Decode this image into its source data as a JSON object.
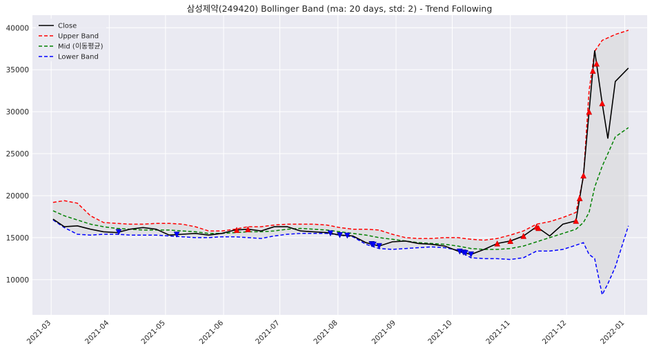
{
  "chart_data": {
    "type": "line",
    "title": "삼성제약(249420) Bollinger Band (ma: 20 days, std: 2) - Trend Following",
    "xlabel": "",
    "ylabel": "",
    "x_range": [
      "2021-02-19",
      "2022-01-13"
    ],
    "ylim": [
      5800,
      41500
    ],
    "grid": true,
    "legend_position": "upper-left",
    "x_ticks": [
      "2021-03",
      "2021-04",
      "2021-05",
      "2021-06",
      "2021-07",
      "2021-08",
      "2021-09",
      "2021-10",
      "2021-11",
      "2021-12",
      "2022-01"
    ],
    "y_ticks": [
      10000,
      15000,
      20000,
      25000,
      30000,
      35000,
      40000
    ],
    "x": [
      "2021-03-02",
      "2021-03-08",
      "2021-03-15",
      "2021-03-22",
      "2021-03-29",
      "2021-04-05",
      "2021-04-12",
      "2021-04-19",
      "2021-04-26",
      "2021-05-03",
      "2021-05-10",
      "2021-05-17",
      "2021-05-24",
      "2021-05-31",
      "2021-06-07",
      "2021-06-14",
      "2021-06-21",
      "2021-06-28",
      "2021-07-05",
      "2021-07-12",
      "2021-07-19",
      "2021-07-26",
      "2021-08-02",
      "2021-08-09",
      "2021-08-16",
      "2021-08-23",
      "2021-08-30",
      "2021-09-06",
      "2021-09-13",
      "2021-09-20",
      "2021-09-27",
      "2021-10-04",
      "2021-10-11",
      "2021-10-18",
      "2021-10-25",
      "2021-11-01",
      "2021-11-08",
      "2021-11-15",
      "2021-11-22",
      "2021-11-29",
      "2021-12-06",
      "2021-12-10",
      "2021-12-13",
      "2021-12-16",
      "2021-12-20",
      "2021-12-23",
      "2021-12-27",
      "2022-01-03"
    ],
    "series": [
      {
        "name": "Close",
        "color": "#000000",
        "dash": "solid",
        "values": [
          17200,
          16300,
          16400,
          16000,
          15700,
          15600,
          16000,
          16200,
          16000,
          15300,
          15400,
          15500,
          15300,
          15500,
          15900,
          16000,
          15800,
          16300,
          16300,
          15800,
          15700,
          15600,
          15300,
          15200,
          14400,
          14000,
          14500,
          14600,
          14300,
          14200,
          14000,
          13400,
          13000,
          13600,
          14300,
          14600,
          15200,
          16300,
          15200,
          16600,
          17000,
          22400,
          30000,
          37300,
          31000,
          26800,
          33600,
          35200
        ]
      },
      {
        "name": "Upper Band",
        "color": "#ff0000",
        "dash": "dashed",
        "values": [
          19200,
          19400,
          19100,
          17600,
          16800,
          16700,
          16600,
          16600,
          16700,
          16700,
          16600,
          16300,
          15800,
          15800,
          16000,
          16300,
          16300,
          16500,
          16600,
          16600,
          16600,
          16500,
          16200,
          16000,
          16000,
          15900,
          15400,
          15000,
          14900,
          14900,
          15000,
          15000,
          14800,
          14700,
          14900,
          15300,
          15800,
          16600,
          16900,
          17400,
          18000,
          22200,
          32500,
          37200,
          38500,
          38800,
          39200,
          39700
        ]
      },
      {
        "name": "Mid (이동평균)",
        "color": "#008000",
        "dash": "dashed",
        "values": [
          18200,
          17600,
          17100,
          16600,
          16300,
          16100,
          16000,
          15900,
          15900,
          15900,
          15800,
          15700,
          15500,
          15500,
          15600,
          15700,
          15700,
          15800,
          16000,
          16100,
          16000,
          15900,
          15700,
          15500,
          15300,
          15000,
          14800,
          14600,
          14400,
          14300,
          14200,
          14000,
          13700,
          13600,
          13600,
          13700,
          14000,
          14500,
          15000,
          15500,
          16000,
          16800,
          18000,
          21000,
          23500,
          25000,
          27000,
          28100
        ]
      },
      {
        "name": "Lower Band",
        "color": "#0000ff",
        "dash": "dashed",
        "values": [
          17100,
          16200,
          15400,
          15300,
          15400,
          15400,
          15300,
          15300,
          15300,
          15200,
          15100,
          15000,
          15000,
          15100,
          15100,
          15000,
          14900,
          15200,
          15400,
          15500,
          15500,
          15500,
          15300,
          15100,
          14200,
          13700,
          13600,
          13700,
          13800,
          13900,
          13800,
          13500,
          12600,
          12500,
          12500,
          12400,
          12600,
          13400,
          13400,
          13600,
          14100,
          14400,
          13000,
          12500,
          8200,
          9500,
          11500,
          16400
        ]
      }
    ],
    "buy_signal_dates": [
      "2021-06-08",
      "2021-06-14",
      "2021-10-25",
      "2021-11-01",
      "2021-11-08",
      "2021-11-15",
      "2021-11-16",
      "2021-12-06",
      "2021-12-08",
      "2021-12-10",
      "2021-12-13",
      "2021-12-15",
      "2021-12-17",
      "2021-12-20"
    ],
    "sell_signal_dates": [
      "2021-04-06",
      "2021-05-07",
      "2021-07-28",
      "2021-08-02",
      "2021-08-06",
      "2021-08-19",
      "2021-08-20",
      "2021-08-23",
      "2021-10-05",
      "2021-10-07",
      "2021-10-08",
      "2021-10-11"
    ]
  }
}
